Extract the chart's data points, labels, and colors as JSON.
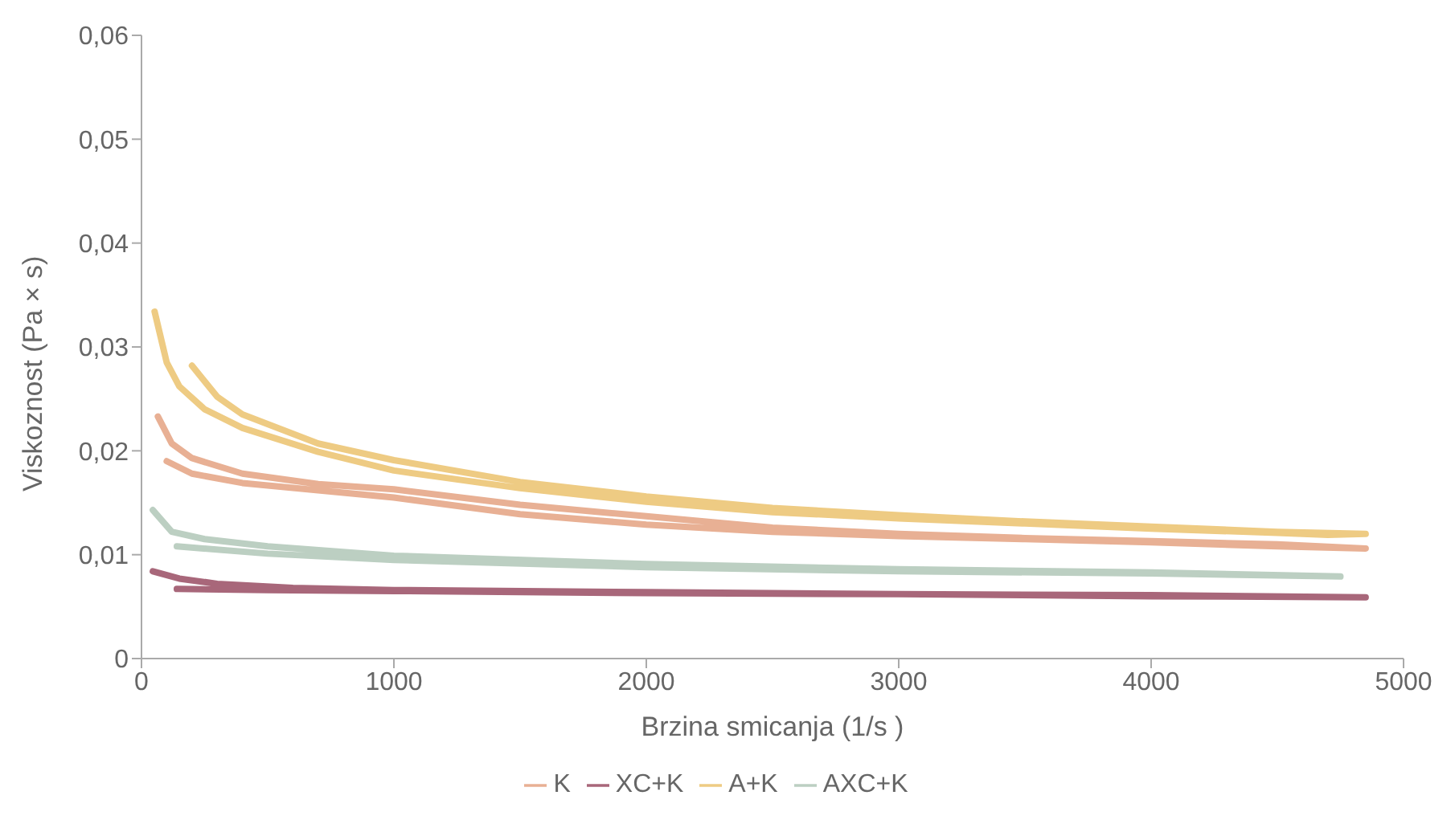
{
  "chart_data": {
    "type": "line",
    "xlabel": "Brzina smicanja (1/s )",
    "ylabel": "Viskoznost (Pa × s)",
    "xlim": [
      0,
      5000
    ],
    "xticks": [
      0,
      1000,
      2000,
      3000,
      4000,
      5000
    ],
    "ylim": [
      0,
      0.06
    ],
    "yticks": [
      {
        "value": 0,
        "label": "0"
      },
      {
        "value": 0.01,
        "label": "0,01"
      },
      {
        "value": 0.02,
        "label": "0,02"
      },
      {
        "value": 0.03,
        "label": "0,03"
      },
      {
        "value": 0.04,
        "label": "0,04"
      },
      {
        "value": 0.05,
        "label": "0,05"
      },
      {
        "value": 0.06,
        "label": "0,06"
      }
    ],
    "grid": false,
    "legend": "bottom",
    "marker": "none",
    "line_style": "solid",
    "series": [
      {
        "name": "K",
        "color": "#e8b094",
        "x": [
          65,
          120,
          200,
          400,
          700,
          1000,
          1500,
          2000,
          2500,
          3000,
          3500,
          4000,
          4500,
          4850,
          4500,
          4000,
          3500,
          3000,
          2500,
          2000,
          1500,
          1000,
          700,
          400,
          200,
          100
        ],
        "values": [
          0.0233,
          0.0207,
          0.0193,
          0.0178,
          0.0168,
          0.0163,
          0.0148,
          0.0137,
          0.0126,
          0.012,
          0.0116,
          0.0113,
          0.011,
          0.0106,
          0.0108,
          0.0112,
          0.0115,
          0.0118,
          0.0122,
          0.0129,
          0.0139,
          0.0155,
          0.0162,
          0.0169,
          0.0178,
          0.019
        ]
      },
      {
        "name": "XC+K",
        "color": "#a8677a",
        "x": [
          45,
          150,
          300,
          600,
          1000,
          2000,
          3000,
          4000,
          4850,
          4000,
          3000,
          2000,
          1000,
          500,
          140
        ],
        "values": [
          0.0084,
          0.0077,
          0.0072,
          0.0068,
          0.0066,
          0.0064,
          0.0062,
          0.0061,
          0.0059,
          0.006,
          0.0062,
          0.0063,
          0.0065,
          0.0066,
          0.0067
        ]
      },
      {
        "name": "A+K",
        "color": "#eecb83",
        "x": [
          52,
          100,
          150,
          250,
          400,
          700,
          1000,
          1500,
          2000,
          2500,
          3000,
          3500,
          4000,
          4500,
          4700,
          4850,
          4500,
          4000,
          3500,
          3000,
          2500,
          2000,
          1500,
          1000,
          700,
          400,
          300,
          200
        ],
        "values": [
          0.0334,
          0.0285,
          0.0262,
          0.024,
          0.0222,
          0.0199,
          0.0181,
          0.0164,
          0.0151,
          0.0141,
          0.0135,
          0.013,
          0.0125,
          0.0121,
          0.0119,
          0.012,
          0.0122,
          0.0127,
          0.0132,
          0.0138,
          0.0145,
          0.0156,
          0.017,
          0.0191,
          0.0207,
          0.0235,
          0.0252,
          0.0282
        ]
      },
      {
        "name": "AXC+K",
        "color": "#bccfc2",
        "x": [
          45,
          120,
          250,
          500,
          1000,
          2000,
          3000,
          4000,
          4750,
          4000,
          3000,
          2000,
          1000,
          500,
          140
        ],
        "values": [
          0.0143,
          0.0122,
          0.0115,
          0.0108,
          0.0099,
          0.0091,
          0.0086,
          0.0083,
          0.0079,
          0.0082,
          0.0084,
          0.0088,
          0.0095,
          0.0101,
          0.0108
        ]
      }
    ]
  }
}
